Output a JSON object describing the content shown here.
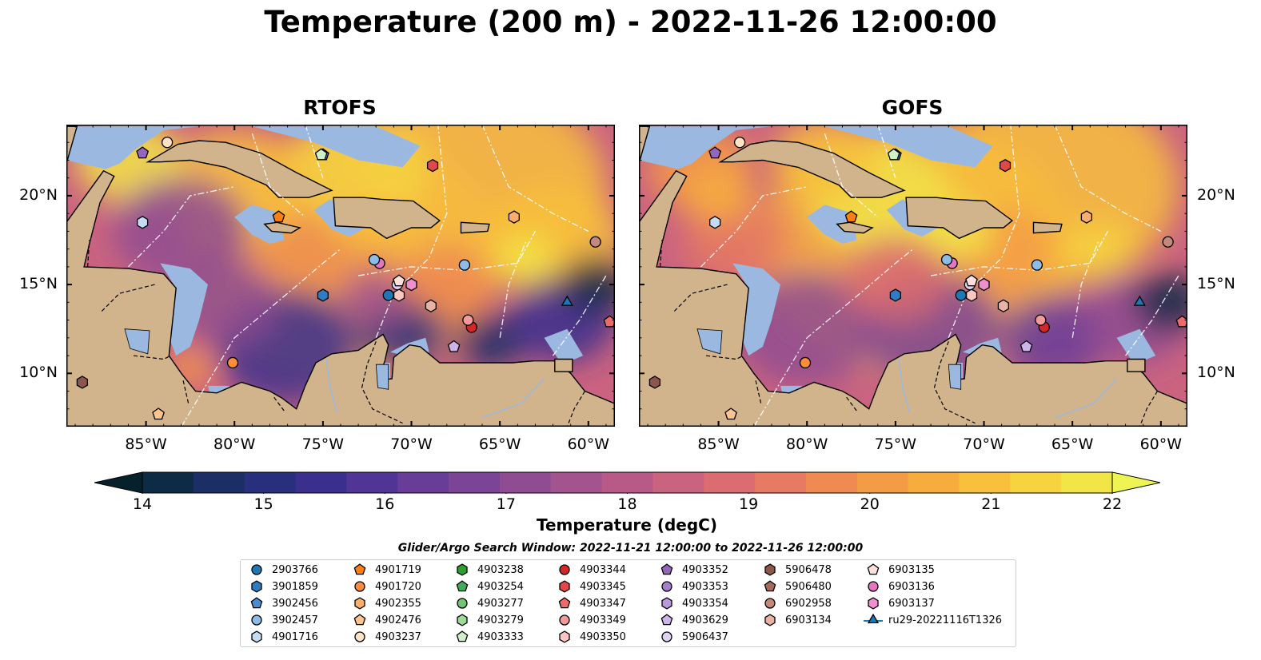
{
  "title": "Temperature (200 m) - 2022-11-26 12:00:00",
  "panels": [
    {
      "title": "RTOFS"
    },
    {
      "title": "GOFS"
    }
  ],
  "axes": {
    "lon_ticks": [
      "85°W",
      "80°W",
      "75°W",
      "70°W",
      "65°W",
      "60°W"
    ],
    "lat_ticks": [
      "20°N",
      "15°N",
      "10°N"
    ],
    "lon_range": [
      -89.5,
      -58.5
    ],
    "lat_range": [
      7.0,
      24.0
    ]
  },
  "colorbar": {
    "label": "Temperature (degC)",
    "ticks": [
      "14",
      "15",
      "16",
      "17",
      "18",
      "19",
      "20",
      "21",
      "22"
    ],
    "range": [
      14,
      22
    ],
    "extend": "both",
    "colors": [
      "#06202c",
      "#0e2b45",
      "#1b2e66",
      "#28307e",
      "#3b2f8e",
      "#513596",
      "#673d98",
      "#7b4496",
      "#8f4c92",
      "#a3538e",
      "#b75a88",
      "#ca6380",
      "#da6c72",
      "#e67a62",
      "#ee8a52",
      "#f49b46",
      "#f7ad3e",
      "#f8c03c",
      "#f6d33f",
      "#f2e548",
      "#eef552"
    ]
  },
  "search_window": "Glider/Argo Search Window: 2022-11-21 12:00:00 to 2022-11-26 12:00:00",
  "legend": {
    "columns": [
      [
        {
          "label": "2903766",
          "marker": "circle",
          "color": "#1f77b4"
        },
        {
          "label": "3901859",
          "marker": "hexagon",
          "color": "#2f7cc0"
        },
        {
          "label": "3902456",
          "marker": "pentagon",
          "color": "#4a8ccf"
        },
        {
          "label": "3902457",
          "marker": "circle",
          "color": "#8dbde6"
        },
        {
          "label": "4901716",
          "marker": "hexagon",
          "color": "#c6dcf2"
        }
      ],
      [
        {
          "label": "4901719",
          "marker": "pentagon",
          "color": "#ff7f0e"
        },
        {
          "label": "4901720",
          "marker": "circle",
          "color": "#fd8d3c"
        },
        {
          "label": "4902355",
          "marker": "hexagon",
          "color": "#fdae6b"
        },
        {
          "label": "4902476",
          "marker": "pentagon",
          "color": "#fdc48f"
        },
        {
          "label": "4903237",
          "marker": "circle",
          "color": "#fee2c4"
        }
      ],
      [
        {
          "label": "4903238",
          "marker": "hexagon",
          "color": "#2ca02c"
        },
        {
          "label": "4903254",
          "marker": "pentagon",
          "color": "#41ab5d"
        },
        {
          "label": "4903277",
          "marker": "circle",
          "color": "#74c476"
        },
        {
          "label": "4903279",
          "marker": "hexagon",
          "color": "#a1d99b"
        },
        {
          "label": "4903333",
          "marker": "pentagon",
          "color": "#d0f0c8"
        }
      ],
      [
        {
          "label": "4903344",
          "marker": "circle",
          "color": "#d62728"
        },
        {
          "label": "4903345",
          "marker": "hexagon",
          "color": "#e0484a"
        },
        {
          "label": "4903347",
          "marker": "pentagon",
          "color": "#ec6a6b"
        },
        {
          "label": "4903349",
          "marker": "circle",
          "color": "#f59a9a"
        },
        {
          "label": "4903350",
          "marker": "hexagon",
          "color": "#fcc6c2"
        }
      ],
      [
        {
          "label": "4903352",
          "marker": "pentagon",
          "color": "#9467bd"
        },
        {
          "label": "4903353",
          "marker": "circle",
          "color": "#a57fcc"
        },
        {
          "label": "4903354",
          "marker": "hexagon",
          "color": "#b899dc"
        },
        {
          "label": "4903629",
          "marker": "pentagon",
          "color": "#cdb5ea"
        },
        {
          "label": "5906437",
          "marker": "circle",
          "color": "#e2d2f6"
        }
      ],
      [
        {
          "label": "5906478",
          "marker": "hexagon",
          "color": "#8c564b"
        },
        {
          "label": "5906480",
          "marker": "pentagon",
          "color": "#a46a5d"
        },
        {
          "label": "6902958",
          "marker": "circle",
          "color": "#c4897a"
        },
        {
          "label": "6903134",
          "marker": "hexagon",
          "color": "#e8b2a4"
        }
      ],
      [
        {
          "label": "6903135",
          "marker": "pentagon",
          "color": "#fde0dc"
        },
        {
          "label": "6903136",
          "marker": "circle",
          "color": "#e377c2"
        },
        {
          "label": "6903137",
          "marker": "hexagon",
          "color": "#f08fd0"
        },
        {
          "label": "ru29-20221116T1326",
          "marker": "triangle-line",
          "color": "#1f77b4"
        }
      ]
    ]
  },
  "floats": [
    {
      "id": "2903766",
      "lon": -71.3,
      "lat": 14.4
    },
    {
      "id": "3901859",
      "lon": -75.0,
      "lat": 14.4
    },
    {
      "id": "3902456",
      "lon": -75.0,
      "lat": 22.3
    },
    {
      "id": "3902457",
      "lon": -67.0,
      "lat": 16.1
    },
    {
      "id": "4901716",
      "lon": -85.2,
      "lat": 18.5
    },
    {
      "id": "4901719",
      "lon": -77.5,
      "lat": 18.8
    },
    {
      "id": "4901720",
      "lon": -80.1,
      "lat": 10.6
    },
    {
      "id": "4902355",
      "lon": -64.2,
      "lat": 18.8
    },
    {
      "id": "4902476",
      "lon": -84.3,
      "lat": 7.7
    },
    {
      "id": "4903237",
      "lon": -83.8,
      "lat": 23.0
    },
    {
      "id": "4903333",
      "lon": -75.1,
      "lat": 22.3
    },
    {
      "id": "4903344",
      "lon": -66.6,
      "lat": 12.6
    },
    {
      "id": "4903345",
      "lon": -68.8,
      "lat": 21.7
    },
    {
      "id": "4903347",
      "lon": -58.8,
      "lat": 12.9
    },
    {
      "id": "4903349",
      "lon": -66.8,
      "lat": 13.0
    },
    {
      "id": "4903350",
      "lon": -70.7,
      "lat": 14.4
    },
    {
      "id": "4903352",
      "lon": -85.2,
      "lat": 22.4
    },
    {
      "id": "4903629",
      "lon": -67.6,
      "lat": 11.5
    },
    {
      "id": "5906437",
      "lon": -70.8,
      "lat": 15.0
    },
    {
      "id": "5906478",
      "lon": -88.6,
      "lat": 9.5
    },
    {
      "id": "6902958",
      "lon": -59.6,
      "lat": 17.4
    },
    {
      "id": "6903134",
      "lon": -68.9,
      "lat": 13.8
    },
    {
      "id": "6903135",
      "lon": -70.7,
      "lat": 15.2
    },
    {
      "id": "6903136",
      "lon": -71.8,
      "lat": 16.2
    },
    {
      "id": "6903137",
      "lon": -70.0,
      "lat": 15.0
    },
    {
      "id": "3902457b",
      "lon": -72.1,
      "lat": 16.4
    },
    {
      "id": "ru29-20221116T1326",
      "lon": -61.2,
      "lat": 14.0
    }
  ]
}
